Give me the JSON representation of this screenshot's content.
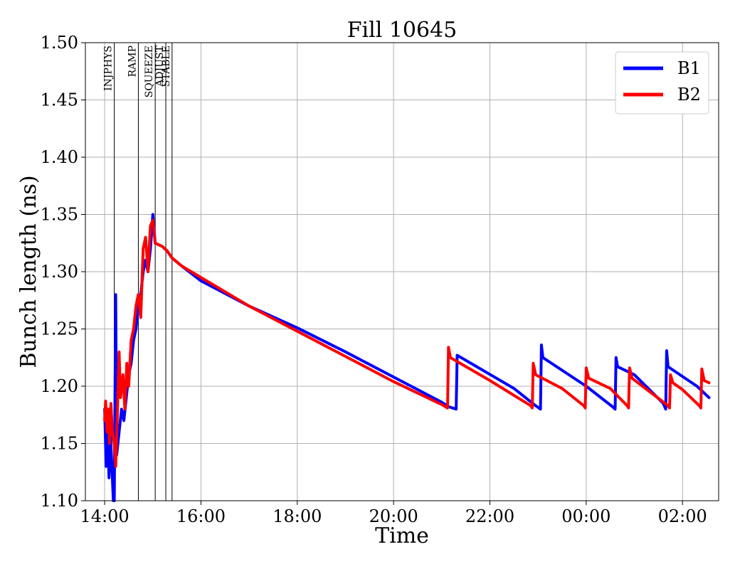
{
  "chart_data": {
    "type": "line",
    "title": "Fill 10645",
    "xlabel": "Time",
    "ylabel": "Bunch length (ns)",
    "ylim": [
      1.1,
      1.5
    ],
    "xlim_hours": [
      13.6,
      26.75
    ],
    "grid": true,
    "legend": "top-right",
    "x_ticks": [
      {
        "h": 14,
        "label": "14:00"
      },
      {
        "h": 16,
        "label": "16:00"
      },
      {
        "h": 18,
        "label": "18:00"
      },
      {
        "h": 20,
        "label": "20:00"
      },
      {
        "h": 22,
        "label": "22:00"
      },
      {
        "h": 24,
        "label": "00:00"
      },
      {
        "h": 26,
        "label": "02:00"
      }
    ],
    "y_ticks": [
      {
        "v": 1.1,
        "label": "1.10"
      },
      {
        "v": 1.15,
        "label": "1.15"
      },
      {
        "v": 1.2,
        "label": "1.20"
      },
      {
        "v": 1.25,
        "label": "1.25"
      },
      {
        "v": 1.3,
        "label": "1.30"
      },
      {
        "v": 1.35,
        "label": "1.35"
      },
      {
        "v": 1.4,
        "label": "1.40"
      },
      {
        "v": 1.45,
        "label": "1.45"
      },
      {
        "v": 1.5,
        "label": "1.50"
      }
    ],
    "phases": [
      {
        "label": "INJPHYS",
        "start_h": 14.2
      },
      {
        "label": "RAMP",
        "start_h": 14.7
      },
      {
        "label": "SQUEEZE",
        "start_h": 15.05
      },
      {
        "label": "ADJUST",
        "start_h": 15.27
      },
      {
        "label": "STABLE",
        "start_h": 15.4
      }
    ],
    "series": [
      {
        "name": "B1",
        "color": "#0000ff",
        "points": [
          [
            14.0,
            1.18
          ],
          [
            14.03,
            1.13
          ],
          [
            14.06,
            1.16
          ],
          [
            14.09,
            1.12
          ],
          [
            14.12,
            1.16
          ],
          [
            14.15,
            1.13
          ],
          [
            14.18,
            1.1
          ],
          [
            14.2,
            1.1
          ],
          [
            14.23,
            1.28
          ],
          [
            14.25,
            1.14
          ],
          [
            14.3,
            1.16
          ],
          [
            14.35,
            1.18
          ],
          [
            14.4,
            1.17
          ],
          [
            14.45,
            1.19
          ],
          [
            14.5,
            1.21
          ],
          [
            14.55,
            1.22
          ],
          [
            14.6,
            1.24
          ],
          [
            14.65,
            1.25
          ],
          [
            14.7,
            1.27
          ],
          [
            14.75,
            1.28
          ],
          [
            14.8,
            1.3
          ],
          [
            14.85,
            1.31
          ],
          [
            14.9,
            1.3
          ],
          [
            14.95,
            1.32
          ],
          [
            15.0,
            1.35
          ],
          [
            15.05,
            1.325
          ],
          [
            15.2,
            1.322
          ],
          [
            15.3,
            1.318
          ],
          [
            15.4,
            1.312
          ],
          [
            15.6,
            1.305
          ],
          [
            16.0,
            1.292
          ],
          [
            17.0,
            1.27
          ],
          [
            18.0,
            1.251
          ],
          [
            19.0,
            1.23
          ],
          [
            20.0,
            1.208
          ],
          [
            21.0,
            1.186
          ],
          [
            21.15,
            1.182
          ],
          [
            21.3,
            1.18
          ],
          [
            21.32,
            1.227
          ],
          [
            22.5,
            1.198
          ],
          [
            22.95,
            1.183
          ],
          [
            23.05,
            1.18
          ],
          [
            23.07,
            1.236
          ],
          [
            23.1,
            1.225
          ],
          [
            24.0,
            1.2
          ],
          [
            24.55,
            1.182
          ],
          [
            24.6,
            1.18
          ],
          [
            24.62,
            1.225
          ],
          [
            24.65,
            1.217
          ],
          [
            25.0,
            1.21
          ],
          [
            25.6,
            1.185
          ],
          [
            25.65,
            1.18
          ],
          [
            25.67,
            1.231
          ],
          [
            25.7,
            1.217
          ],
          [
            26.3,
            1.2
          ],
          [
            26.55,
            1.19
          ]
        ]
      },
      {
        "name": "B2",
        "color": "#ff0000",
        "points": [
          [
            14.0,
            1.17
          ],
          [
            14.02,
            1.187
          ],
          [
            14.05,
            1.16
          ],
          [
            14.08,
            1.18
          ],
          [
            14.1,
            1.15
          ],
          [
            14.13,
            1.185
          ],
          [
            14.16,
            1.16
          ],
          [
            14.2,
            1.15
          ],
          [
            14.23,
            1.13
          ],
          [
            14.26,
            1.17
          ],
          [
            14.3,
            1.23
          ],
          [
            14.33,
            1.19
          ],
          [
            14.38,
            1.21
          ],
          [
            14.42,
            1.18
          ],
          [
            14.46,
            1.22
          ],
          [
            14.5,
            1.2
          ],
          [
            14.55,
            1.24
          ],
          [
            14.6,
            1.25
          ],
          [
            14.65,
            1.27
          ],
          [
            14.7,
            1.28
          ],
          [
            14.75,
            1.26
          ],
          [
            14.8,
            1.32
          ],
          [
            14.85,
            1.33
          ],
          [
            14.9,
            1.3
          ],
          [
            14.95,
            1.34
          ],
          [
            15.0,
            1.345
          ],
          [
            15.05,
            1.325
          ],
          [
            15.2,
            1.322
          ],
          [
            15.3,
            1.318
          ],
          [
            15.4,
            1.312
          ],
          [
            15.6,
            1.305
          ],
          [
            16.0,
            1.295
          ],
          [
            17.0,
            1.27
          ],
          [
            18.0,
            1.248
          ],
          [
            19.0,
            1.226
          ],
          [
            20.0,
            1.204
          ],
          [
            21.0,
            1.184
          ],
          [
            21.12,
            1.181
          ],
          [
            21.14,
            1.234
          ],
          [
            21.18,
            1.225
          ],
          [
            22.0,
            1.205
          ],
          [
            22.85,
            1.183
          ],
          [
            22.88,
            1.181
          ],
          [
            22.9,
            1.22
          ],
          [
            22.95,
            1.21
          ],
          [
            23.5,
            1.198
          ],
          [
            23.95,
            1.183
          ],
          [
            23.98,
            1.181
          ],
          [
            24.0,
            1.216
          ],
          [
            24.05,
            1.207
          ],
          [
            24.5,
            1.198
          ],
          [
            24.85,
            1.183
          ],
          [
            24.88,
            1.181
          ],
          [
            24.9,
            1.216
          ],
          [
            24.95,
            1.207
          ],
          [
            25.7,
            1.183
          ],
          [
            25.73,
            1.181
          ],
          [
            25.75,
            1.21
          ],
          [
            25.8,
            1.203
          ],
          [
            26.0,
            1.197
          ],
          [
            26.35,
            1.183
          ],
          [
            26.38,
            1.181
          ],
          [
            26.4,
            1.215
          ],
          [
            26.45,
            1.205
          ],
          [
            26.55,
            1.203
          ]
        ]
      }
    ]
  }
}
